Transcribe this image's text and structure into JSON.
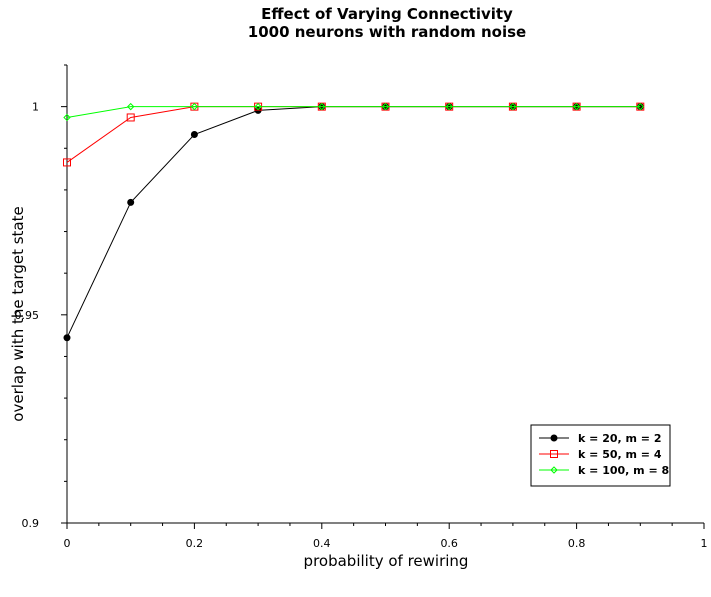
{
  "chart_data": {
    "type": "line",
    "title": "Effect of Varying Connectivity",
    "subtitle": "1000 neurons with random noise",
    "xlabel": "probability of rewiring",
    "ylabel": "overlap with the target state",
    "xlim": [
      0,
      1
    ],
    "ylim": [
      0.9,
      1.01
    ],
    "x_ticks": [
      "0",
      "0.2",
      "0.4",
      "0.6",
      "0.8",
      "1"
    ],
    "y_ticks": [
      "0.9",
      "0.95",
      "1"
    ],
    "x": [
      0,
      0.1,
      0.2,
      0.3,
      0.4,
      0.5,
      0.6,
      0.7,
      0.8,
      0.9
    ],
    "legend_position": "bottom-right",
    "series": [
      {
        "name": "k = 20, m = 2",
        "color": "#000000",
        "marker": "filled-circle",
        "values": [
          0.9445,
          0.977,
          0.9933,
          0.9991,
          1.0,
          1.0,
          1.0,
          1.0,
          1.0,
          1.0
        ]
      },
      {
        "name": "k = 50, m  = 4",
        "color": "#ff0000",
        "marker": "open-square",
        "values": [
          0.9866,
          0.9974,
          1.0,
          1.0,
          1.0,
          1.0,
          1.0,
          1.0,
          1.0,
          1.0
        ]
      },
      {
        "name": "k = 100, m = 8",
        "color": "#00ff00",
        "marker": "open-diamond",
        "values": [
          0.9974,
          1.0,
          1.0,
          1.0,
          1.0,
          1.0,
          1.0,
          1.0,
          1.0,
          1.0
        ]
      }
    ]
  }
}
